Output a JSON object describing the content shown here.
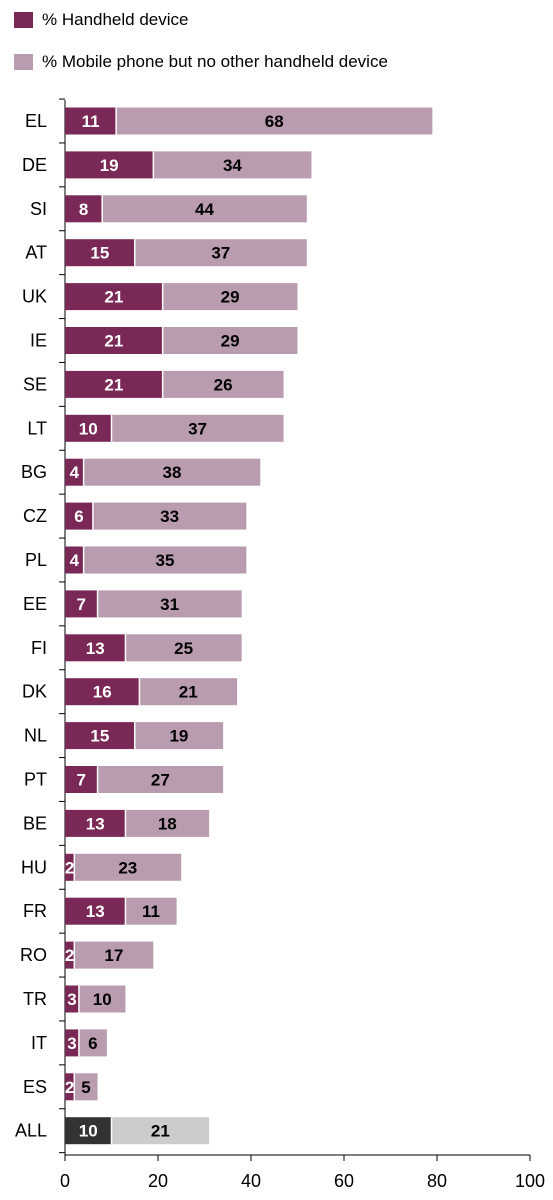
{
  "chart_data": {
    "type": "bar",
    "orientation": "horizontal",
    "stacked": true,
    "categories": [
      "EL",
      "DE",
      "SI",
      "AT",
      "UK",
      "IE",
      "SE",
      "LT",
      "BG",
      "CZ",
      "PL",
      "EE",
      "FI",
      "DK",
      "NL",
      "PT",
      "BE",
      "HU",
      "FR",
      "RO",
      "TR",
      "IT",
      "ES",
      "ALL"
    ],
    "series": [
      {
        "name": "% Handheld device",
        "color": "#7a2855",
        "values": [
          11,
          19,
          8,
          15,
          21,
          21,
          21,
          10,
          4,
          6,
          4,
          7,
          13,
          16,
          15,
          7,
          13,
          2,
          13,
          2,
          3,
          3,
          2,
          10
        ]
      },
      {
        "name": "% Mobile phone but no other handheld device",
        "color": "#b99cb0",
        "values": [
          68,
          34,
          44,
          37,
          29,
          29,
          26,
          37,
          38,
          33,
          35,
          31,
          25,
          21,
          19,
          27,
          18,
          23,
          11,
          17,
          10,
          6,
          5,
          21
        ]
      }
    ],
    "highlight": {
      "category": "ALL",
      "colors": [
        "#333333",
        "#cccccc"
      ]
    },
    "xlim": [
      0,
      100
    ],
    "xticks": [
      "0",
      "20",
      "40",
      "60",
      "80",
      "100"
    ],
    "legend_position": "top",
    "grid": false,
    "title": "",
    "xlabel": "",
    "ylabel": ""
  }
}
